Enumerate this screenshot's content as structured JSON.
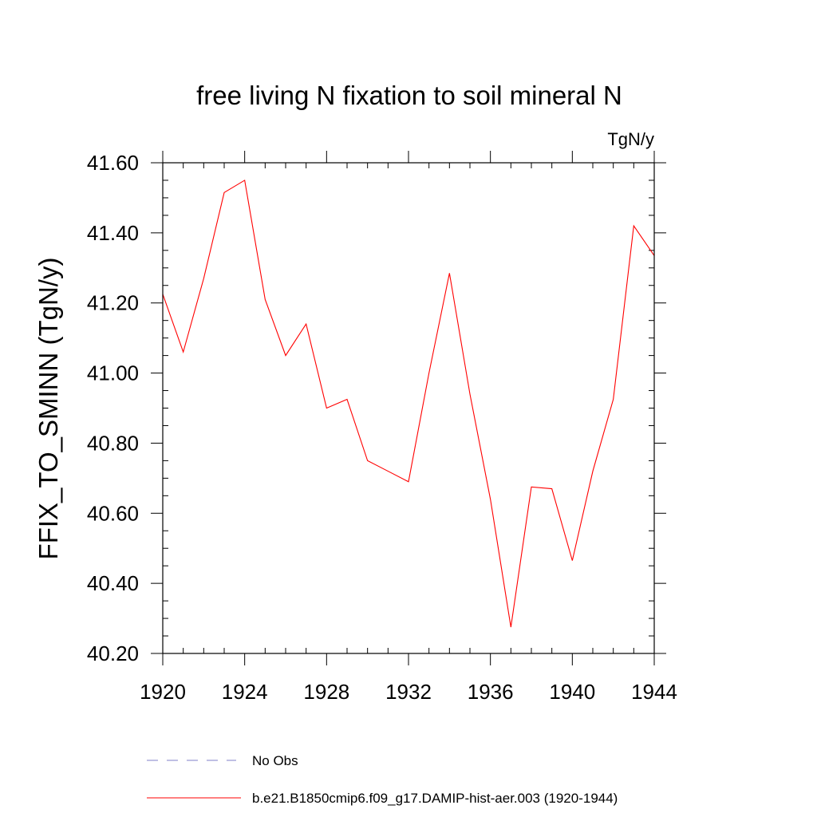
{
  "chart_data": {
    "type": "line",
    "title": "free living N fixation to soil mineral N",
    "units": "TgN/y",
    "ylabel": "FFIX_TO_SMINN  (TgN/y)",
    "xlabel": "",
    "xlim": [
      1920,
      1944
    ],
    "ylim": [
      40.2,
      41.6
    ],
    "x_ticks": [
      "1920",
      "1924",
      "1928",
      "1932",
      "1936",
      "1940",
      "1944"
    ],
    "y_ticks": [
      "40.20",
      "40.40",
      "40.60",
      "40.80",
      "41.00",
      "41.20",
      "41.40",
      "41.60"
    ],
    "series": [
      {
        "name": "b.e21.B1850cmip6.f09_g17.DAMIP-hist-aer.003 (1920-1944)",
        "color": "#ff0000",
        "x": [
          1920,
          1921,
          1922,
          1923,
          1924,
          1925,
          1926,
          1927,
          1928,
          1929,
          1930,
          1931,
          1932,
          1933,
          1934,
          1935,
          1936,
          1937,
          1938,
          1939,
          1940,
          1941,
          1942,
          1943,
          1944
        ],
        "y": [
          41.225,
          41.06,
          41.27,
          41.515,
          41.55,
          41.21,
          41.05,
          41.14,
          40.9,
          40.925,
          40.75,
          40.72,
          40.69,
          41.0,
          41.285,
          40.94,
          40.64,
          40.275,
          40.675,
          40.67,
          40.465,
          40.72,
          40.925,
          41.42,
          41.335
        ]
      }
    ],
    "legend": [
      {
        "label": "No Obs",
        "color": "#7f7fc8",
        "style": "dashed"
      },
      {
        "label": "b.e21.B1850cmip6.f09_g17.DAMIP-hist-aer.003 (1920-1944)",
        "color": "#ff0000",
        "style": "solid"
      }
    ],
    "legend_position": "bottom",
    "grid": false
  }
}
